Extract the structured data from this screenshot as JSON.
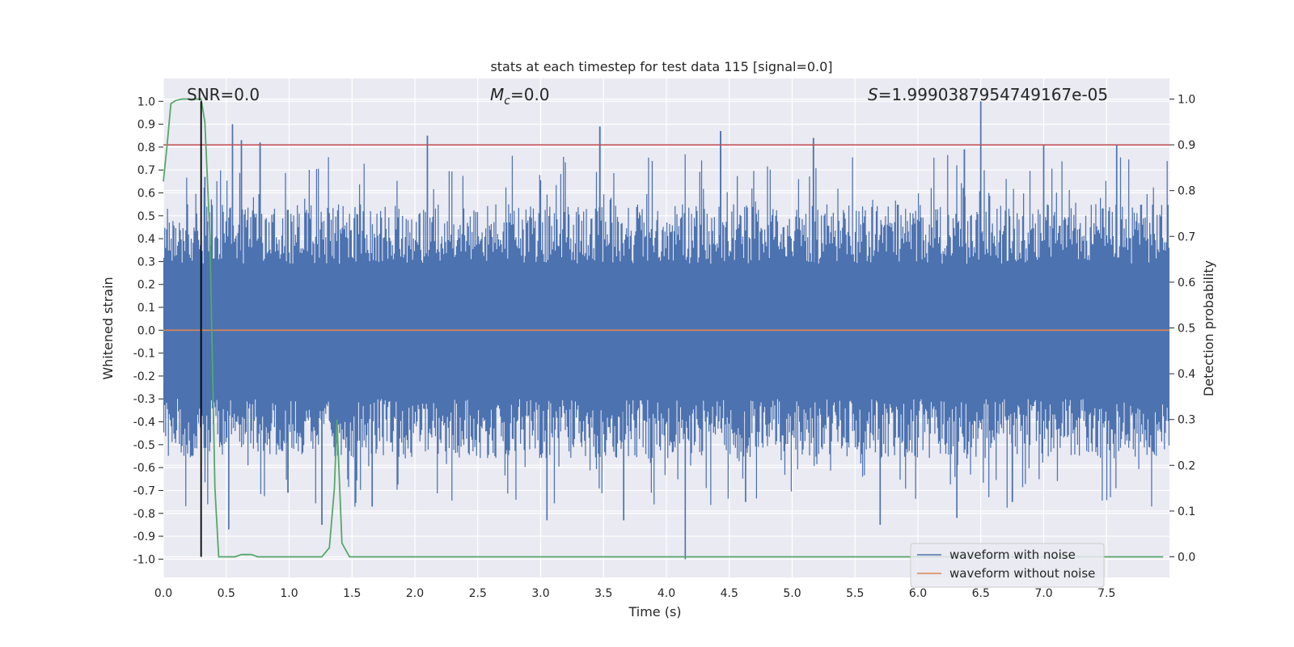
{
  "chart_data": {
    "type": "line",
    "title": "stats at each timestep for test data 115 [signal=0.0]",
    "xlabel": "Time (s)",
    "ylabel": "Whitened strain",
    "ylabel_right": "Detection probability",
    "xlim": [
      0.0,
      8.0
    ],
    "ylim": [
      -1.08,
      1.1
    ],
    "ylim_right": [
      -0.045,
      1.045
    ],
    "xticks": [
      "0.0",
      "0.5",
      "1.0",
      "1.5",
      "2.0",
      "2.5",
      "3.0",
      "3.5",
      "4.0",
      "4.5",
      "5.0",
      "5.5",
      "6.0",
      "6.5",
      "7.0",
      "7.5"
    ],
    "yticks": [
      "1.0",
      "0.9",
      "0.8",
      "0.7",
      "0.6",
      "0.5",
      "0.4",
      "0.3",
      "0.2",
      "0.1",
      "0.0",
      "-0.1",
      "-0.2",
      "-0.3",
      "-0.4",
      "-0.5",
      "-0.6",
      "-0.7",
      "-0.8",
      "-0.9",
      "-1.0"
    ],
    "yticks_right": [
      "1.0",
      "0.9",
      "0.8",
      "0.7",
      "0.6",
      "0.5",
      "0.4",
      "0.3",
      "0.2",
      "0.1",
      "0.0"
    ],
    "annotations": {
      "snr_label": "SNR=0.0",
      "mc_symbol": "M",
      "mc_sub": "c",
      "mc_value": "=0.0",
      "s_symbol": "S",
      "s_value": "=1.9990387954749167e-05"
    },
    "legend": {
      "location": "lower-right",
      "entries": [
        "waveform with noise",
        "waveform without noise"
      ]
    },
    "colors": {
      "noise": "#4c72b0",
      "clean": "#dd8452",
      "probability": "#55a868",
      "threshold": "#c44e52",
      "marker": "#000000",
      "background": "#eaeaf2"
    },
    "threshold_value": 0.9,
    "marker_time": 0.3,
    "noise_envelope": {
      "positive_mean": 0.43,
      "negative_mean": -0.44,
      "peaks": [
        {
          "t": 0.55,
          "v": 0.9
        },
        {
          "t": 0.62,
          "v": 0.83
        },
        {
          "t": 0.77,
          "v": 0.82
        },
        {
          "t": 2.1,
          "v": 0.85
        },
        {
          "t": 3.47,
          "v": 0.89
        },
        {
          "t": 4.43,
          "v": 0.87
        },
        {
          "t": 5.17,
          "v": 0.84
        },
        {
          "t": 6.5,
          "v": 1.0
        },
        {
          "t": 6.37,
          "v": 0.79
        },
        {
          "t": 7.0,
          "v": 0.81
        },
        {
          "t": 7.58,
          "v": 0.81
        },
        {
          "t": 0.33,
          "v": 0.67
        }
      ],
      "troughs": [
        {
          "t": 0.52,
          "v": -0.87
        },
        {
          "t": 1.26,
          "v": -0.85
        },
        {
          "t": 4.15,
          "v": -1.0
        },
        {
          "t": 3.05,
          "v": -0.83
        },
        {
          "t": 3.66,
          "v": -0.83
        },
        {
          "t": 5.7,
          "v": -0.85
        },
        {
          "t": 6.31,
          "v": -0.82
        },
        {
          "t": 1.66,
          "v": -0.77
        },
        {
          "t": 0.99,
          "v": -0.71
        },
        {
          "t": 4.63,
          "v": -0.75
        },
        {
          "t": 6.75,
          "v": -0.75
        }
      ]
    },
    "detection_probability": {
      "t": [
        0.0,
        0.03,
        0.06,
        0.1,
        0.15,
        0.22,
        0.28,
        0.3,
        0.33,
        0.37,
        0.41,
        0.44,
        0.5,
        0.57,
        0.62,
        0.7,
        0.75,
        0.85,
        1.0,
        1.2,
        1.26,
        1.32,
        1.36,
        1.38,
        1.42,
        1.48,
        1.55,
        2.0,
        3.0,
        4.0,
        5.0,
        6.0,
        7.0,
        7.95
      ],
      "p": [
        0.82,
        0.9,
        0.99,
        0.997,
        1.0,
        1.0,
        1.0,
        1.0,
        0.95,
        0.7,
        0.15,
        0.0,
        0.0,
        0.0,
        0.005,
        0.005,
        0.0,
        0.0,
        0.0,
        0.0,
        0.0,
        0.02,
        0.15,
        0.3,
        0.03,
        0.0,
        0.0,
        0.0,
        0.0,
        0.0,
        0.0,
        0.0,
        0.0,
        0.0
      ]
    }
  }
}
